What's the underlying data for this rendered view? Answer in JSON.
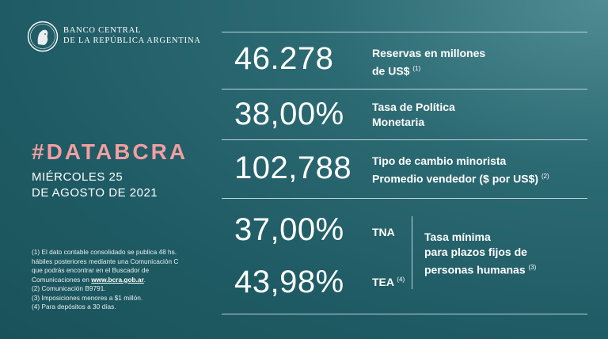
{
  "header": {
    "bank_line1": "BANCO CENTRAL",
    "bank_line2": "DE LA REPÚBLICA ARGENTINA",
    "logo_icon": "bcra-seal-icon"
  },
  "left": {
    "hashtag": "#DATABCRA",
    "date_line1": "MIÉRCOLES 25",
    "date_line2": "DE AGOSTO DE 2021"
  },
  "notes": {
    "line1": "(1) El dato contable consolidado se publica 48 hs.",
    "line2": "hábiles posteriores mediante una Comunicación C",
    "line3": "que podrás encontrar en el Buscador de",
    "line4_prefix": "Comunicaciones en ",
    "line4_link": "www.bcra.gob.ar",
    "line4_suffix": ".",
    "line5": "(2) Comunicación B9791.",
    "line6": "(3) Imposiciones menores a $1 millón.",
    "line7": "(4) Para depósitos a 30 días."
  },
  "indicators": {
    "reservas": {
      "value": "46.278",
      "label_line1": "Reservas en millones",
      "label_line2": "de US$",
      "note": "(1)"
    },
    "tasa_politica": {
      "value": "38,00%",
      "label_line1": "Tasa de Política",
      "label_line2": "Monetaria"
    },
    "tipo_cambio": {
      "value": "102,788",
      "label_line1": "Tipo de cambio minorista",
      "label_line2": "Promedio vendedor  ($ por US$)",
      "note": "(2)"
    },
    "tna": {
      "value": "37,00%",
      "label": "TNA"
    },
    "tea": {
      "value": "43,98%",
      "label": "TEA",
      "note": "(4)"
    },
    "plazo_fijo": {
      "line1": "Tasa mínima",
      "line2": "para plazos fijos de",
      "line3": "personas humanas",
      "note": "(3)"
    }
  }
}
